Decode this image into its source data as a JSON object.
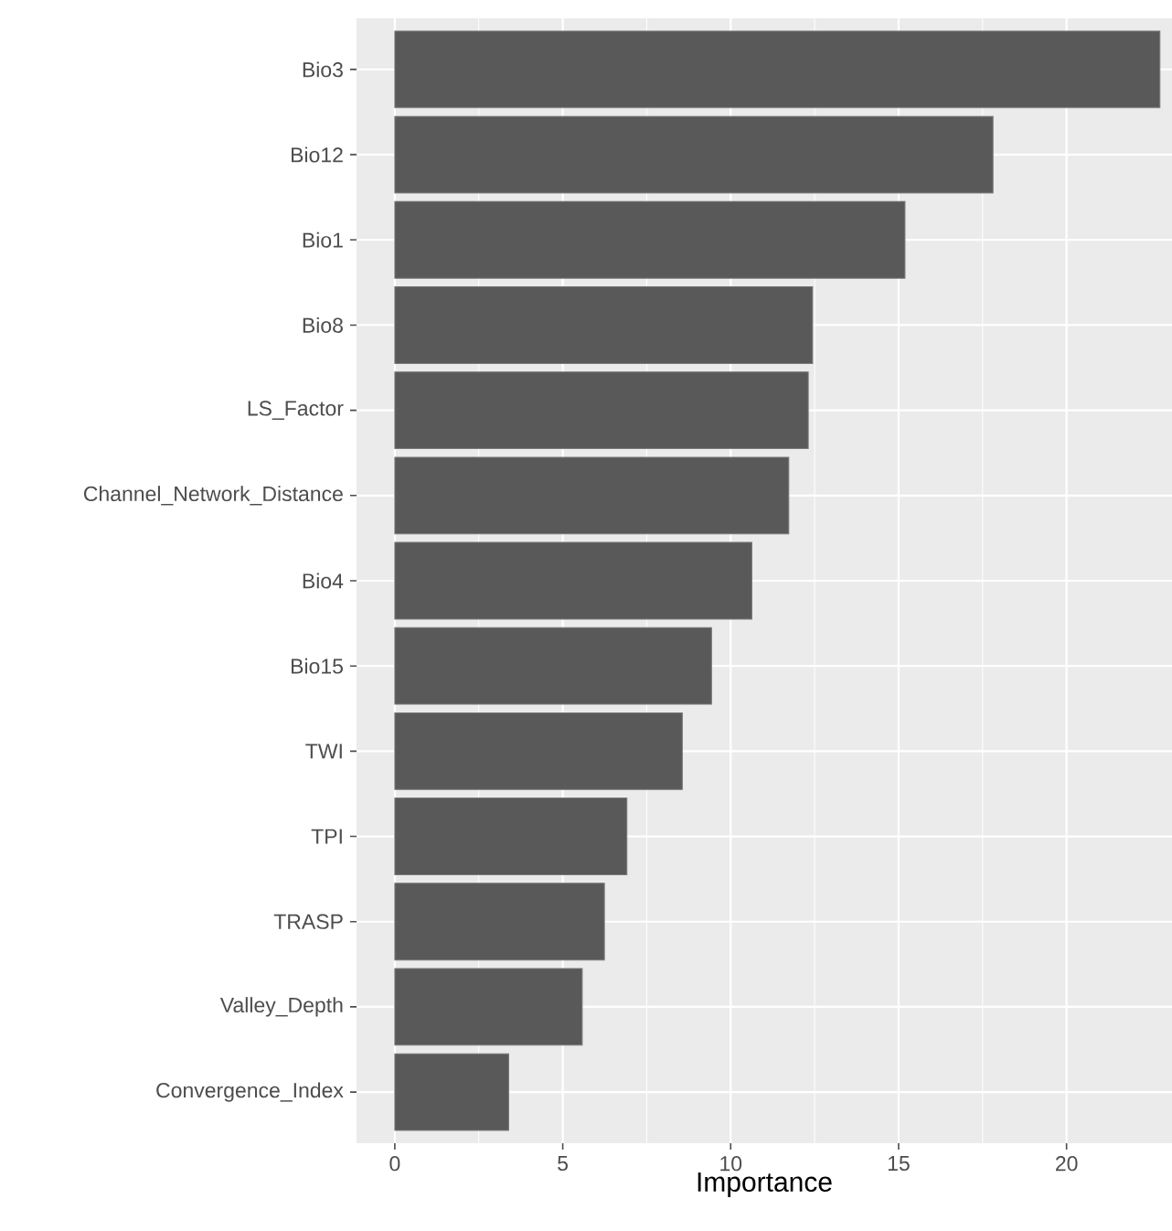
{
  "chart_data": {
    "type": "bar",
    "orientation": "horizontal",
    "xlabel": "Importance",
    "categories": [
      "Bio3",
      "Bio12",
      "Bio1",
      "Bio8",
      "LS_Factor",
      "Channel_Network_Distance",
      "Bio4",
      "Bio15",
      "TWI",
      "TPI",
      "TRASP",
      "Valley_Depth",
      "Convergence_Index"
    ],
    "values": [
      22.78,
      17.81,
      15.19,
      12.44,
      12.31,
      11.73,
      10.63,
      9.43,
      8.56,
      6.91,
      6.24,
      5.58,
      3.39
    ],
    "color": "#595959",
    "xlim": [
      -1.14,
      23.14
    ],
    "xticks": [
      0,
      5,
      10,
      15,
      20
    ],
    "grid": true
  }
}
